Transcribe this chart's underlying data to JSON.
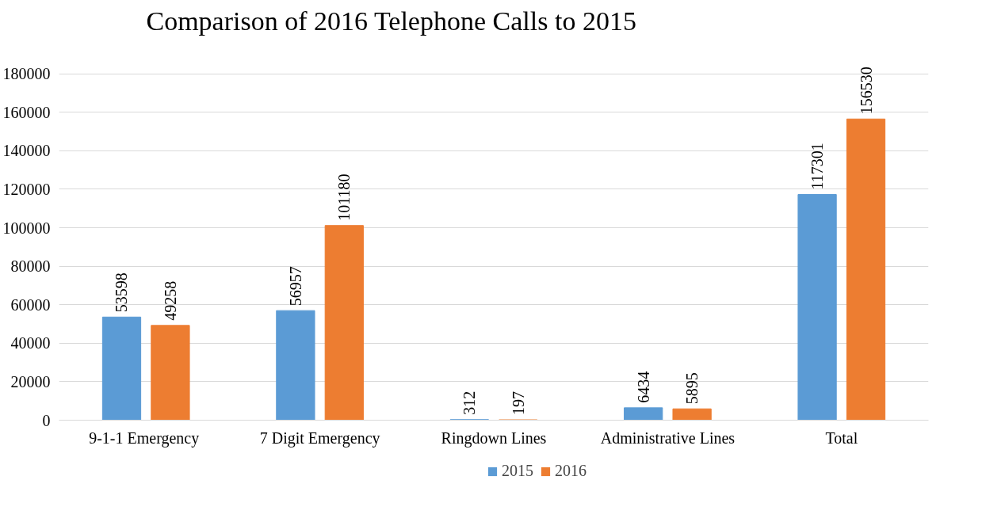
{
  "chart_data": {
    "type": "bar",
    "title": "Comparison of 2016 Telephone Calls to 2015",
    "categories": [
      "9-1-1  Emergency",
      "7 Digit Emergency",
      "Ringdown Lines",
      "Administrative Lines",
      "Total"
    ],
    "series": [
      {
        "name": "2015",
        "color": "#5b9bd5",
        "values": [
          53598,
          56957,
          312,
          6434,
          117301
        ]
      },
      {
        "name": "2016",
        "color": "#ed7d31",
        "values": [
          49258,
          101180,
          197,
          5895,
          156530
        ]
      }
    ],
    "ylim": [
      0,
      180000
    ],
    "yticks": [
      0,
      20000,
      40000,
      60000,
      80000,
      100000,
      120000,
      140000,
      160000,
      180000
    ],
    "grid": "y",
    "legend": "bottom",
    "data_labels": true
  }
}
